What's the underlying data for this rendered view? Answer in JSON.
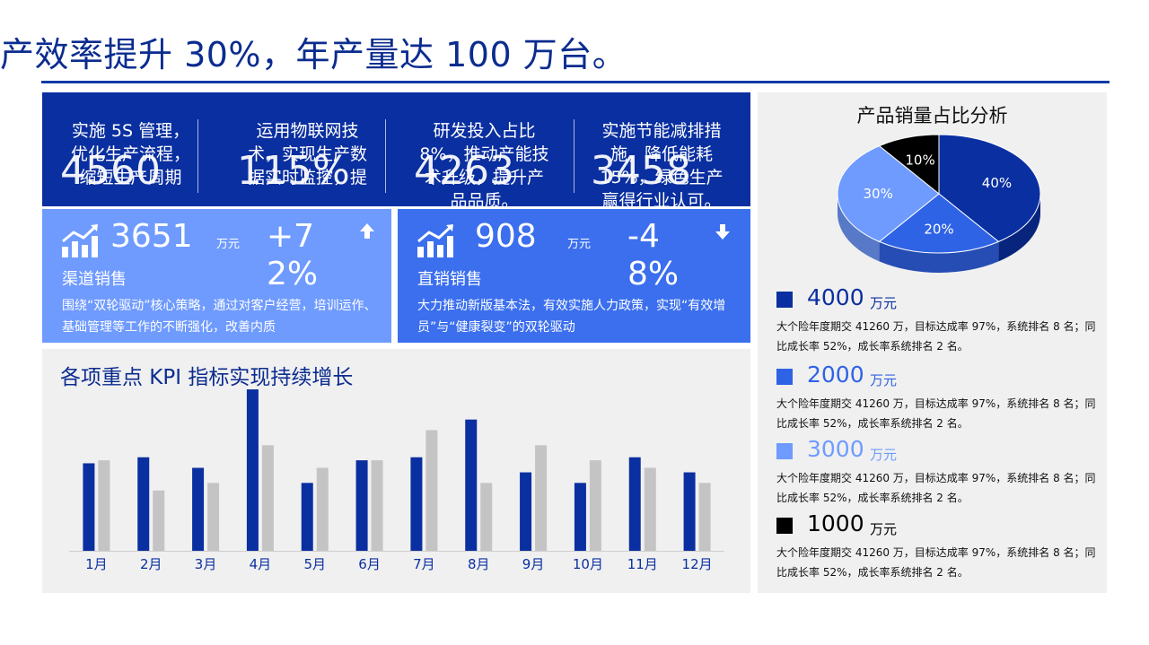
{
  "headline": "产效率提升 30%，年产量达 100 万台。",
  "top_band": [
    {
      "text": "实施 5S 管理，优化生产流程，缩短生产周期",
      "number": "4560"
    },
    {
      "text": "运用物联网技术，实现生产数据实时监控，提",
      "number": "115%"
    },
    {
      "text": "研发投入占比 8%，推动产能技术升级，提升产品品质。",
      "number": "4263"
    },
    {
      "text": "实施节能减排措施，降低能耗 15%，绿色生产赢得行业认可。",
      "number": "3458"
    }
  ],
  "cards": [
    {
      "value": "3651",
      "unit": "万元",
      "change": "+72%",
      "label": "渠道销售",
      "desc": "围绕“双轮驱动”核心策略，通过对客户经营，培训运作、基础管理等工作的不断强化，改善内质"
    },
    {
      "value": "908",
      "unit": "万元",
      "change": "-48%",
      "label": "直销销售",
      "desc": "大力推动新版基本法，有效实施人力政策，实现“有效增员”与“健康裂变”的双轮驱动"
    }
  ],
  "kpi": {
    "title": "各项重点 KPI 指标实现持续增长"
  },
  "chart_data": {
    "type": "bar",
    "categories": [
      "1月",
      "2月",
      "3月",
      "4月",
      "5月",
      "6月",
      "7月",
      "8月",
      "9月",
      "10月",
      "11月",
      "12月"
    ],
    "series": [
      {
        "values": [
          58,
          62,
          55,
          107,
          45,
          60,
          62,
          87,
          52,
          45,
          62,
          52
        ],
        "color": "#0a2fa0"
      },
      {
        "values": [
          60,
          40,
          45,
          70,
          55,
          60,
          80,
          45,
          70,
          60,
          55,
          45
        ],
        "color": "#c4c4c4"
      }
    ],
    "ylim": [
      0,
      110
    ],
    "grid": false,
    "legend": "none"
  },
  "pie": {
    "title": "产品销量占比分析",
    "slices": [
      {
        "label": "40%",
        "value": 40,
        "color": "#0a2fa0"
      },
      {
        "label": "20%",
        "value": 20,
        "color": "#2f63e6"
      },
      {
        "label": "30%",
        "value": 30,
        "color": "#6f9bff"
      },
      {
        "label": "10%",
        "value": 10,
        "color": "#000000"
      }
    ]
  },
  "legend": [
    {
      "value": "4000",
      "unit": "万元",
      "color": "#0a2fa0",
      "desc": "大个险年度期交 41260 万，目标达成率 97%，系统排名 8 名；同比成长率 52%，成长率系统排名 2 名。"
    },
    {
      "value": "2000",
      "unit": "万元",
      "color": "#2f63e6",
      "desc": "大个险年度期交 41260 万，目标达成率 97%，系统排名 8 名；同比成长率 52%，成长率系统排名 2 名。"
    },
    {
      "value": "3000",
      "unit": "万元",
      "color": "#6f9bff",
      "desc": "大个险年度期交 41260 万，目标达成率 97%，系统排名 8 名；同比成长率 52%，成长率系统排名 2 名。"
    },
    {
      "value": "1000",
      "unit": "万元",
      "color": "#000000",
      "desc": "大个险年度期交 41260 万，目标达成率 97%，系统排名 8 名；同比成长率 52%，成长率系统排名 2 名。"
    }
  ],
  "icons": {
    "growth": "bar-growth-icon",
    "up": "arrow-up-icon",
    "down": "arrow-down-icon"
  }
}
